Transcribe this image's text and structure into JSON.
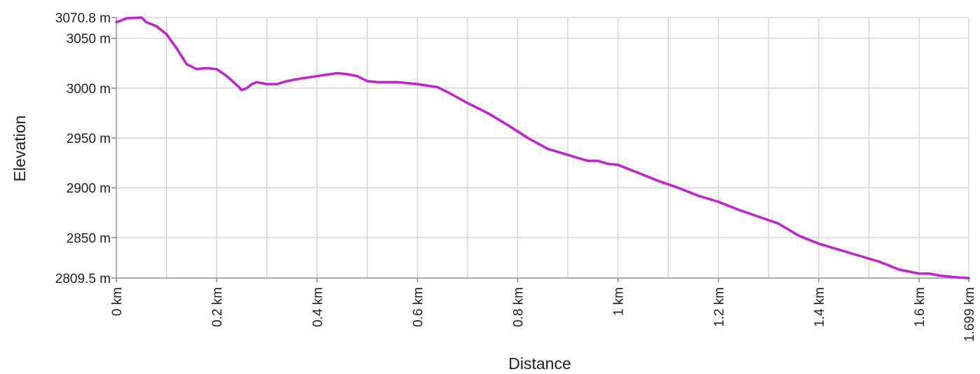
{
  "chart_data": {
    "type": "line",
    "title": "",
    "xlabel": "Distance",
    "ylabel": "Elevation",
    "xlim": [
      0,
      1.699
    ],
    "ylim": [
      2809.5,
      3070.8
    ],
    "grid": true,
    "line_color": "#c41fd4",
    "x_ticks": [
      {
        "value": 0,
        "label": "0 km"
      },
      {
        "value": 0.2,
        "label": "0.2 km"
      },
      {
        "value": 0.4,
        "label": "0.4 km"
      },
      {
        "value": 0.6,
        "label": "0.6 km"
      },
      {
        "value": 0.8,
        "label": "0.8 km"
      },
      {
        "value": 1.0,
        "label": "1 km"
      },
      {
        "value": 1.2,
        "label": "1.2 km"
      },
      {
        "value": 1.4,
        "label": "1.4 km"
      },
      {
        "value": 1.6,
        "label": "1.6 km"
      },
      {
        "value": 1.699,
        "label": "1.699 km"
      }
    ],
    "x_minor_grid": [
      0.1,
      0.3,
      0.5,
      0.7,
      0.9,
      1.1,
      1.3,
      1.5
    ],
    "y_ticks": [
      {
        "value": 3070.8,
        "label": "3070.8 m"
      },
      {
        "value": 3050,
        "label": "3050 m"
      },
      {
        "value": 3000,
        "label": "3000 m"
      },
      {
        "value": 2950,
        "label": "2950 m"
      },
      {
        "value": 2900,
        "label": "2900 m"
      },
      {
        "value": 2850,
        "label": "2850 m"
      },
      {
        "value": 2809.5,
        "label": "2809.5 m"
      }
    ],
    "series": [
      {
        "x": [
          0,
          0.01,
          0.02,
          0.04,
          0.05,
          0.06,
          0.08,
          0.1,
          0.12,
          0.14,
          0.16,
          0.18,
          0.2,
          0.22,
          0.24,
          0.25,
          0.26,
          0.27,
          0.28,
          0.3,
          0.32,
          0.34,
          0.36,
          0.4,
          0.44,
          0.46,
          0.48,
          0.5,
          0.52,
          0.56,
          0.6,
          0.64,
          0.66,
          0.7,
          0.74,
          0.78,
          0.82,
          0.86,
          0.9,
          0.92,
          0.94,
          0.96,
          0.98,
          1.0,
          1.04,
          1.08,
          1.12,
          1.16,
          1.2,
          1.24,
          1.28,
          1.32,
          1.36,
          1.4,
          1.44,
          1.48,
          1.52,
          1.56,
          1.6,
          1.62,
          1.64,
          1.66,
          1.68,
          1.699
        ],
        "values": [
          3066,
          3068,
          3070,
          3070.5,
          3070.8,
          3066,
          3062,
          3054,
          3040,
          3024,
          3019,
          3020,
          3019,
          3012,
          3003,
          2998,
          3000,
          3004,
          3006,
          3004,
          3004,
          3007,
          3009,
          3012,
          3015,
          3014,
          3012,
          3007,
          3006,
          3006,
          3004,
          3001,
          2996,
          2985,
          2975,
          2963,
          2950,
          2939,
          2933,
          2930,
          2927,
          2927,
          2924,
          2923,
          2915,
          2907,
          2900,
          2892,
          2886,
          2878,
          2871,
          2864,
          2852,
          2844,
          2838,
          2832,
          2826,
          2818,
          2814,
          2814,
          2812,
          2811,
          2810,
          2809.5
        ]
      }
    ]
  }
}
